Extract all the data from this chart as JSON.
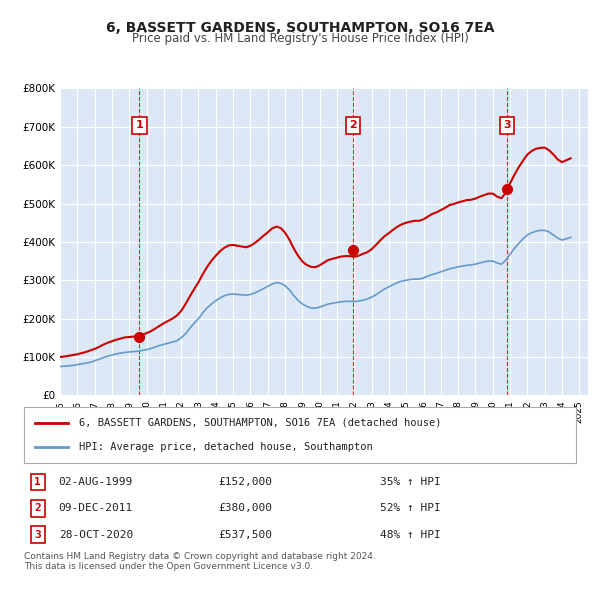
{
  "title": "6, BASSETT GARDENS, SOUTHAMPTON, SO16 7EA",
  "subtitle": "Price paid vs. HM Land Registry's House Price Index (HPI)",
  "bg_color": "#dce8f5",
  "plot_bg_color": "#dce8f5",
  "fig_bg_color": "#ffffff",
  "ylim": [
    0,
    800000
  ],
  "yticks": [
    0,
    100000,
    200000,
    300000,
    400000,
    500000,
    600000,
    700000,
    800000
  ],
  "ytick_labels": [
    "£0",
    "£100K",
    "£200K",
    "£300K",
    "£400K",
    "£500K",
    "£600K",
    "£700K",
    "£800K"
  ],
  "xlim_start": 1995.0,
  "xlim_end": 2025.5,
  "xtick_years": [
    1995,
    1996,
    1997,
    1998,
    1999,
    2000,
    2001,
    2002,
    2003,
    2004,
    2005,
    2006,
    2007,
    2008,
    2009,
    2010,
    2011,
    2012,
    2013,
    2014,
    2015,
    2016,
    2017,
    2018,
    2019,
    2020,
    2021,
    2022,
    2023,
    2024,
    2025
  ],
  "sale_color": "#cc0000",
  "hpi_color": "#6699cc",
  "sale_marker_color": "#cc0000",
  "vline_color": "#cc0000",
  "grid_color": "#ffffff",
  "label_box_color": "#cc0000",
  "sale_dates": [
    1999.583,
    2011.917,
    2020.833
  ],
  "sale_prices": [
    152000,
    380000,
    537500
  ],
  "sale_labels": [
    "1",
    "2",
    "3"
  ],
  "legend_line1": "6, BASSETT GARDENS, SOUTHAMPTON, SO16 7EA (detached house)",
  "legend_line2": "HPI: Average price, detached house, Southampton",
  "table_rows": [
    {
      "num": "1",
      "date": "02-AUG-1999",
      "price": "£152,000",
      "pct": "35% ↑ HPI"
    },
    {
      "num": "2",
      "date": "09-DEC-2011",
      "price": "£380,000",
      "pct": "52% ↑ HPI"
    },
    {
      "num": "3",
      "date": "28-OCT-2020",
      "price": "£537,500",
      "pct": "48% ↑ HPI"
    }
  ],
  "footnote": "Contains HM Land Registry data © Crown copyright and database right 2024.\nThis data is licensed under the Open Government Licence v3.0.",
  "hpi_data": {
    "years": [
      1995.0,
      1995.25,
      1995.5,
      1995.75,
      1996.0,
      1996.25,
      1996.5,
      1996.75,
      1997.0,
      1997.25,
      1997.5,
      1997.75,
      1998.0,
      1998.25,
      1998.5,
      1998.75,
      1999.0,
      1999.25,
      1999.5,
      1999.75,
      2000.0,
      2000.25,
      2000.5,
      2000.75,
      2001.0,
      2001.25,
      2001.5,
      2001.75,
      2002.0,
      2002.25,
      2002.5,
      2002.75,
      2003.0,
      2003.25,
      2003.5,
      2003.75,
      2004.0,
      2004.25,
      2004.5,
      2004.75,
      2005.0,
      2005.25,
      2005.5,
      2005.75,
      2006.0,
      2006.25,
      2006.5,
      2006.75,
      2007.0,
      2007.25,
      2007.5,
      2007.75,
      2008.0,
      2008.25,
      2008.5,
      2008.75,
      2009.0,
      2009.25,
      2009.5,
      2009.75,
      2010.0,
      2010.25,
      2010.5,
      2010.75,
      2011.0,
      2011.25,
      2011.5,
      2011.75,
      2012.0,
      2012.25,
      2012.5,
      2012.75,
      2013.0,
      2013.25,
      2013.5,
      2013.75,
      2014.0,
      2014.25,
      2014.5,
      2014.75,
      2015.0,
      2015.25,
      2015.5,
      2015.75,
      2016.0,
      2016.25,
      2016.5,
      2016.75,
      2017.0,
      2017.25,
      2017.5,
      2017.75,
      2018.0,
      2018.25,
      2018.5,
      2018.75,
      2019.0,
      2019.25,
      2019.5,
      2019.75,
      2020.0,
      2020.25,
      2020.5,
      2020.75,
      2021.0,
      2021.25,
      2021.5,
      2021.75,
      2022.0,
      2022.25,
      2022.5,
      2022.75,
      2023.0,
      2023.25,
      2023.5,
      2023.75,
      2024.0,
      2024.25,
      2024.5
    ],
    "values": [
      75000,
      76000,
      77000,
      78000,
      80000,
      82000,
      84000,
      86000,
      90000,
      94000,
      98000,
      102000,
      105000,
      108000,
      110000,
      112000,
      113000,
      114000,
      115000,
      117000,
      119000,
      122000,
      126000,
      130000,
      133000,
      136000,
      139000,
      142000,
      150000,
      160000,
      175000,
      188000,
      200000,
      215000,
      228000,
      238000,
      247000,
      254000,
      260000,
      263000,
      264000,
      263000,
      262000,
      261000,
      263000,
      267000,
      272000,
      278000,
      284000,
      290000,
      294000,
      292000,
      286000,
      275000,
      260000,
      248000,
      238000,
      232000,
      228000,
      227000,
      230000,
      234000,
      238000,
      240000,
      242000,
      244000,
      245000,
      245000,
      244000,
      246000,
      248000,
      251000,
      256000,
      262000,
      270000,
      277000,
      283000,
      289000,
      294000,
      298000,
      300000,
      302000,
      303000,
      303000,
      306000,
      311000,
      315000,
      318000,
      322000,
      326000,
      330000,
      332000,
      335000,
      337000,
      339000,
      340000,
      342000,
      345000,
      348000,
      350000,
      350000,
      345000,
      342000,
      352000,
      368000,
      383000,
      396000,
      408000,
      418000,
      424000,
      428000,
      430000,
      430000,
      426000,
      418000,
      410000,
      405000,
      408000,
      412000
    ]
  },
  "sale_hpi_data": {
    "years": [
      1995.0,
      1995.25,
      1995.5,
      1995.75,
      1996.0,
      1996.25,
      1996.5,
      1996.75,
      1997.0,
      1997.25,
      1997.5,
      1997.75,
      1998.0,
      1998.25,
      1998.5,
      1998.75,
      1999.0,
      1999.25,
      1999.5,
      1999.75,
      2000.0,
      2000.25,
      2000.5,
      2000.75,
      2001.0,
      2001.25,
      2001.5,
      2001.75,
      2002.0,
      2002.25,
      2002.5,
      2002.75,
      2003.0,
      2003.25,
      2003.5,
      2003.75,
      2004.0,
      2004.25,
      2004.5,
      2004.75,
      2005.0,
      2005.25,
      2005.5,
      2005.75,
      2006.0,
      2006.25,
      2006.5,
      2006.75,
      2007.0,
      2007.25,
      2007.5,
      2007.75,
      2008.0,
      2008.25,
      2008.5,
      2008.75,
      2009.0,
      2009.25,
      2009.5,
      2009.75,
      2010.0,
      2010.25,
      2010.5,
      2010.75,
      2011.0,
      2011.25,
      2011.5,
      2011.75,
      2012.0,
      2012.25,
      2012.5,
      2012.75,
      2013.0,
      2013.25,
      2013.5,
      2013.75,
      2014.0,
      2014.25,
      2014.5,
      2014.75,
      2015.0,
      2015.25,
      2015.5,
      2015.75,
      2016.0,
      2016.25,
      2016.5,
      2016.75,
      2017.0,
      2017.25,
      2017.5,
      2017.75,
      2018.0,
      2018.25,
      2018.5,
      2018.75,
      2019.0,
      2019.25,
      2019.5,
      2019.75,
      2020.0,
      2020.25,
      2020.5,
      2020.75,
      2021.0,
      2021.25,
      2021.5,
      2021.75,
      2022.0,
      2022.25,
      2022.5,
      2022.75,
      2023.0,
      2023.25,
      2023.5,
      2023.75,
      2024.0,
      2024.25,
      2024.5
    ],
    "values": [
      100000,
      101000,
      103000,
      105000,
      107000,
      110000,
      113000,
      117000,
      121000,
      126000,
      132000,
      137000,
      141000,
      145000,
      148000,
      151000,
      152000,
      153000,
      155000,
      158000,
      162000,
      167000,
      174000,
      181000,
      188000,
      194000,
      200000,
      208000,
      220000,
      238000,
      258000,
      277000,
      295000,
      316000,
      335000,
      351000,
      364000,
      376000,
      385000,
      391000,
      392000,
      390000,
      388000,
      386000,
      390000,
      397000,
      406000,
      416000,
      425000,
      435000,
      440000,
      436000,
      424000,
      406000,
      383000,
      364000,
      349000,
      340000,
      335000,
      334000,
      339000,
      346000,
      353000,
      356000,
      359000,
      362000,
      363000,
      363000,
      361000,
      364000,
      369000,
      373000,
      381000,
      392000,
      404000,
      415000,
      423000,
      432000,
      440000,
      446000,
      450000,
      453000,
      455000,
      455000,
      459000,
      466000,
      473000,
      477000,
      483000,
      489000,
      496000,
      499000,
      503000,
      506000,
      509000,
      510000,
      513000,
      518000,
      522000,
      526000,
      526000,
      518000,
      514000,
      528000,
      553000,
      575000,
      595000,
      612000,
      628000,
      637000,
      643000,
      645000,
      646000,
      639000,
      628000,
      615000,
      608000,
      613000,
      618000
    ]
  }
}
